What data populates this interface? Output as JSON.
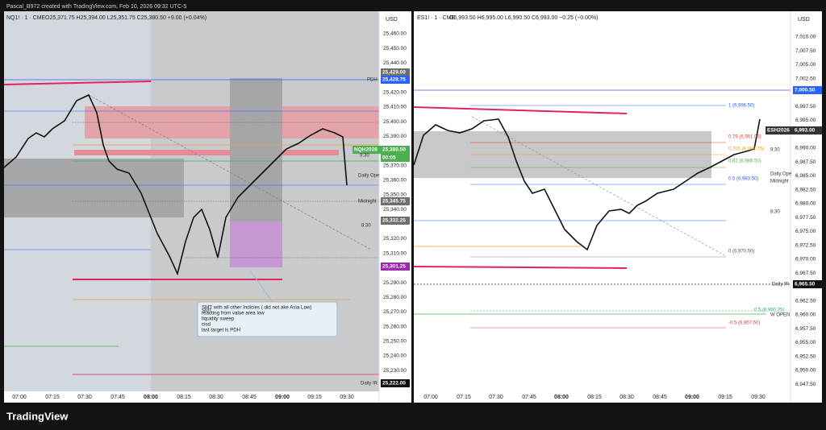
{
  "header": {
    "title": "Pascal_B972 created with TradingView.com, Feb 10, 2026 09:32 UTC-5"
  },
  "panes": [
    {
      "symbol": "NQ1! · 1 · CME",
      "ohlc": "O25,371.75 H25,394.00 L25,351.75 C25,380.50 +9.00 (+0.04%)",
      "currency": "USD",
      "price_axis": [
        "25,460.00",
        "25,450.00",
        "25,440.00",
        "25,420.00",
        "25,410.00",
        "25,400.00",
        "25,390.00",
        "25,370.00",
        "25,360.00",
        "25,350.00",
        "25,340.00",
        "25,320.00",
        "25,310.00",
        "25,290.00",
        "25,280.00",
        "25,270.00",
        "25,260.00",
        "25,250.00",
        "25,240.00",
        "25,230.00"
      ],
      "time_axis": [
        "07:00",
        "07:15",
        "07:30",
        "07:45",
        "08:00",
        "08:15",
        "08:30",
        "08:45",
        "09:00",
        "09:15",
        "09:30"
      ],
      "tags": [
        "25,429.00",
        "25,428.75",
        "NQH2026",
        "25,380.50",
        "00:05",
        "25,345.75",
        "25,332.25",
        "25,301.25",
        "25,222.00"
      ],
      "labels": [
        "PDH",
        "Daily Ope",
        "Midnight",
        "8:30",
        "9:30",
        "Daily IR",
        "SMT"
      ],
      "note": [
        "SMT  with all other Indicies ( did not ake Asia Low)",
        "reacting from value area low",
        "liquidity sweep",
        "cisd",
        "last target is PDH"
      ]
    },
    {
      "symbol": "ES1! · 1 · CME",
      "ohlc": "O6,993.50 H6,995.00 L6,990.50 C6,993.00 −0.25 (−0.00%)",
      "currency": "USD",
      "price_axis": [
        "7,010.00",
        "7,007.50",
        "7,005.00",
        "7,002.50",
        "6,997.50",
        "6,995.00",
        "6,990.00",
        "6,987.50",
        "6,985.00",
        "6,982.50",
        "6,980.00",
        "6,977.50",
        "6,975.00",
        "6,972.50",
        "6,970.00",
        "6,967.50",
        "6,962.50",
        "6,960.00",
        "6,957.50",
        "6,955.00",
        "6,952.50",
        "6,950.00",
        "6,947.50"
      ],
      "time_axis": [
        "07:00",
        "07:15",
        "07:30",
        "07:45",
        "08:00",
        "08:15",
        "08:30",
        "08:45",
        "09:00",
        "09:15",
        "09:30"
      ],
      "tags": [
        "7,000.50",
        "ESH2026",
        "6,993.00",
        "6,965.50"
      ],
      "labels": [
        "1 (6,996.50)",
        "0.79 (6,991.09)",
        "0.705 (6,988.75)",
        "0.62 (6,986.50)",
        "0.5 (6,983.50)",
        "0 (6,970.50)",
        "0.5 (6,960.25)",
        "-0.5 (6,957.50)",
        "8:30",
        "9:30",
        "Daily Ope",
        "Midnight",
        "Daily IR",
        "W OPEN"
      ]
    }
  ],
  "footer": {
    "logo": "TradingView"
  }
}
